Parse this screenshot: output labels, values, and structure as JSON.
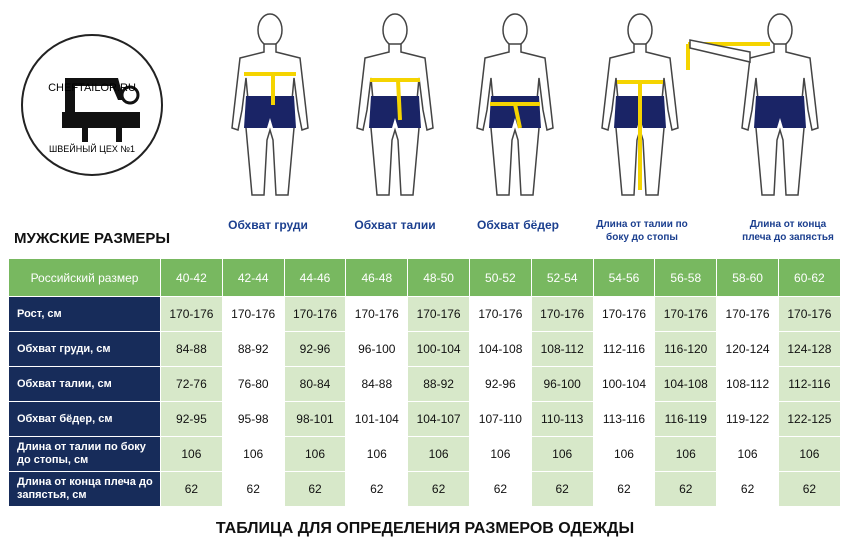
{
  "logo": {
    "site": "CHEFTAILOR.RU",
    "tagline": "ШВЕЙНЫЙ ЦЕХ №1"
  },
  "measurements": [
    "Обхват груди",
    "Обхват талии",
    "Обхват бёдер",
    "Длина от талии по боку до стопы",
    "Длина от конца плеча до запястья"
  ],
  "section_title": "МУЖСКИЕ РАЗМЕРЫ",
  "table": {
    "header": [
      "Российский размер",
      "40-42",
      "42-44",
      "44-46",
      "46-48",
      "48-50",
      "50-52",
      "52-54",
      "54-56",
      "56-58",
      "58-60",
      "60-62"
    ],
    "rows": [
      [
        "Рост, см",
        "170-176",
        "170-176",
        "170-176",
        "170-176",
        "170-176",
        "170-176",
        "170-176",
        "170-176",
        "170-176",
        "170-176",
        "170-176"
      ],
      [
        "Обхват груди, см",
        "84-88",
        "88-92",
        "92-96",
        "96-100",
        "100-104",
        "104-108",
        "108-112",
        "112-116",
        "116-120",
        "120-124",
        "124-128"
      ],
      [
        "Обхват талии, см",
        "72-76",
        "76-80",
        "80-84",
        "84-88",
        "88-92",
        "92-96",
        "96-100",
        "100-104",
        "104-108",
        "108-112",
        "112-116"
      ],
      [
        "Обхват бёдер, см",
        "92-95",
        "95-98",
        "98-101",
        "101-104",
        "104-107",
        "107-110",
        "110-113",
        "113-116",
        "116-119",
        "119-122",
        "122-125"
      ],
      [
        "Длина от талии по боку до стопы, см",
        "106",
        "106",
        "106",
        "106",
        "106",
        "106",
        "106",
        "106",
        "106",
        "106",
        "106"
      ],
      [
        "Длина от конца плеча до запястья, см",
        "62",
        "62",
        "62",
        "62",
        "62",
        "62",
        "62",
        "62",
        "62",
        "62",
        "62"
      ]
    ]
  },
  "footer_title": "ТАБЛИЦА ДЛЯ ОПРЕДЕЛЕНИЯ РАЗМЕРОВ ОДЕЖДЫ"
}
